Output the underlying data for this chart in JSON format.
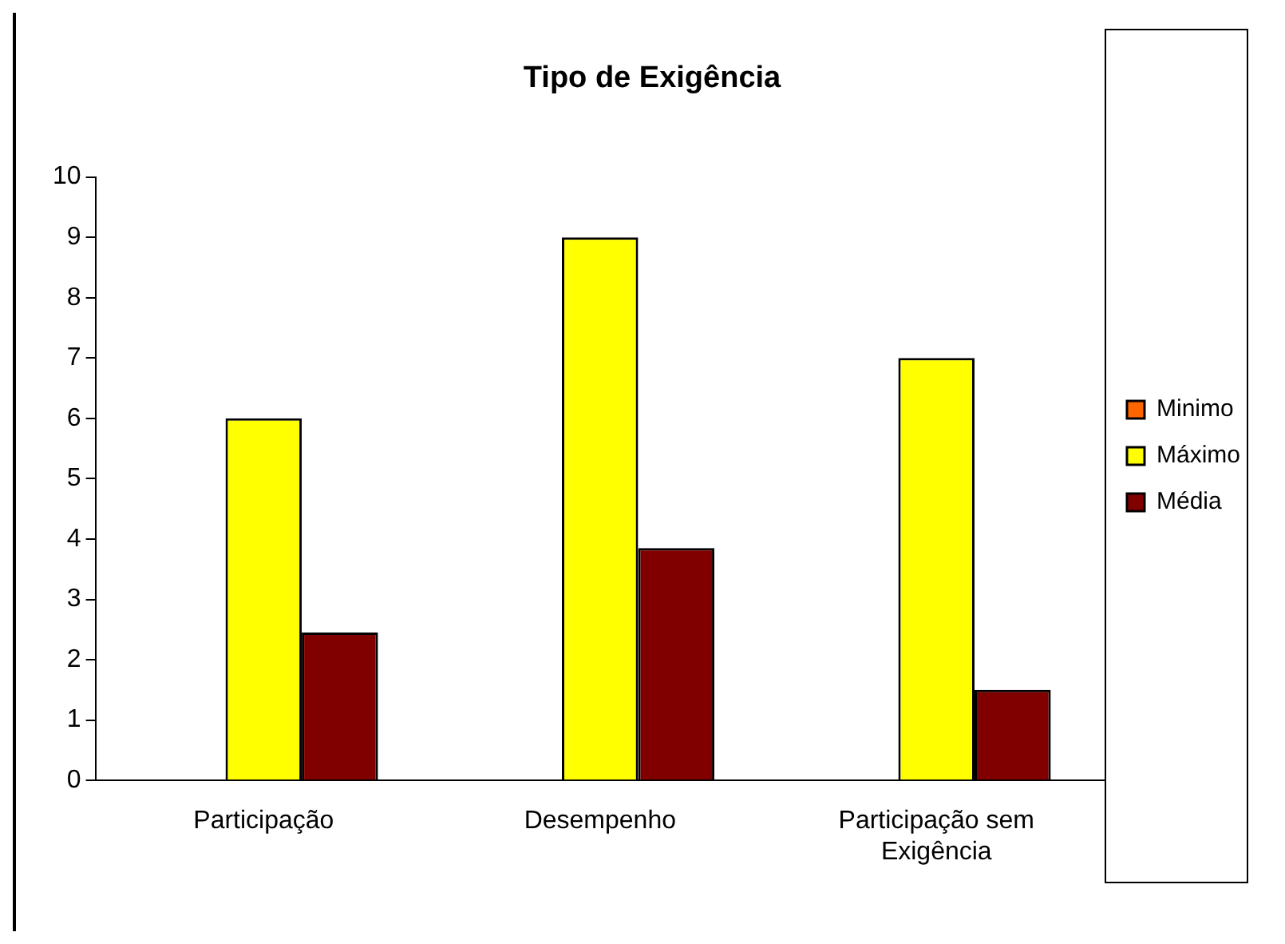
{
  "chart_data": {
    "type": "bar",
    "title": "Tipo de Exigência",
    "categories": [
      "Participação",
      "Desempenho",
      "Participação sem Exigência"
    ],
    "series": [
      {
        "name": "Minimo",
        "color": "#ff6600",
        "values": [
          0,
          0,
          0
        ]
      },
      {
        "name": "Máximo",
        "color": "#ffff00",
        "values": [
          6,
          9,
          7
        ]
      },
      {
        "name": "Média",
        "color": "#800000",
        "values": [
          2.45,
          3.85,
          1.5
        ]
      }
    ],
    "ylim": [
      0,
      10
    ],
    "yticks": [
      0,
      1,
      2,
      3,
      4,
      5,
      6,
      7,
      8,
      9,
      10
    ],
    "grid": false,
    "legend": "right"
  }
}
